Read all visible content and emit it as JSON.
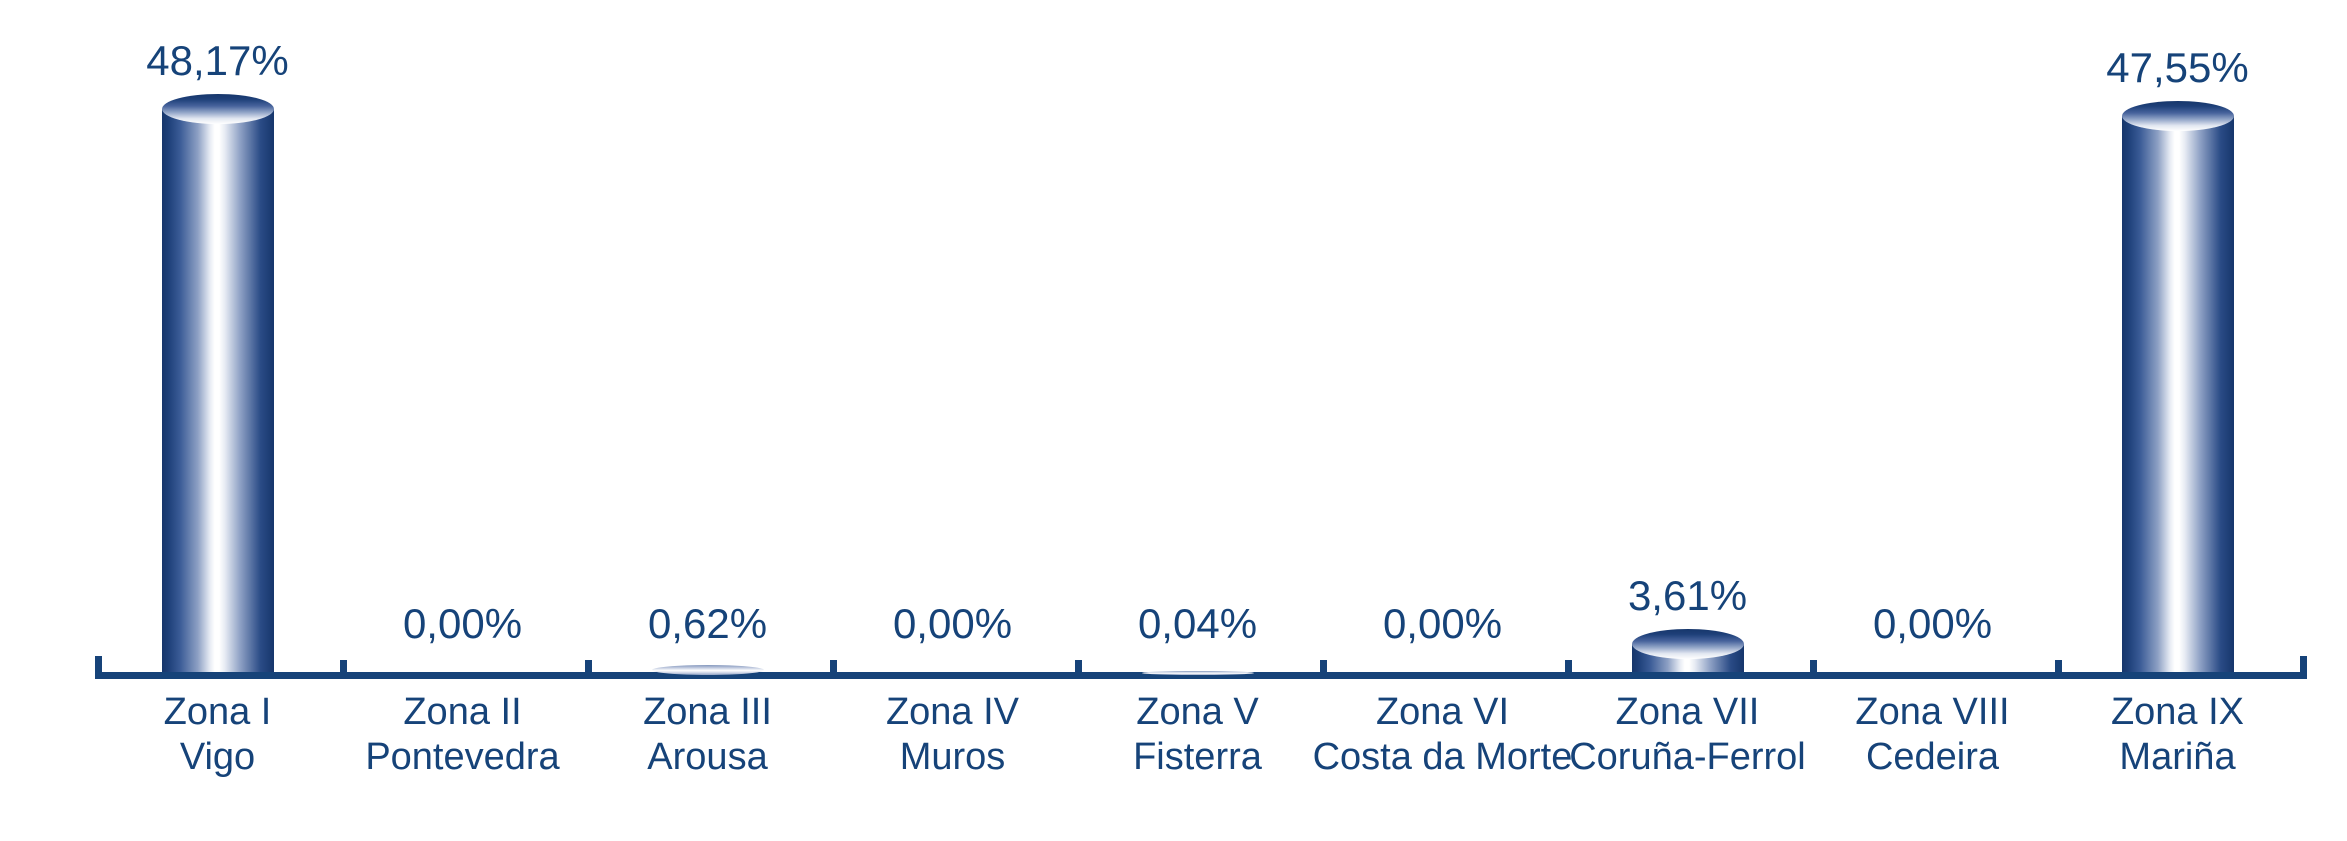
{
  "chart_data": {
    "type": "bar",
    "subtype": "3d-cylinder",
    "title": "",
    "xlabel": "",
    "ylabel": "",
    "ylim": [
      0,
      50
    ],
    "grid": false,
    "legend": "none",
    "value_format": "percent-comma-decimal",
    "categories": [
      "Zona I\nVigo",
      "Zona II\nPontevedra",
      "Zona III\nArousa",
      "Zona IV\nMuros",
      "Zona V\nFisterra",
      "Zona VI\nCosta da Morte",
      "Zona VII\nCoruña-Ferrol",
      "Zona VIII\nCedeira",
      "Zona IX\nMariña"
    ],
    "bars": [
      {
        "zone": "Zona I",
        "place": "Vigo",
        "value": 48.17,
        "label": "48,17%"
      },
      {
        "zone": "Zona II",
        "place": "Pontevedra",
        "value": 0.0,
        "label": "0,00%"
      },
      {
        "zone": "Zona III",
        "place": "Arousa",
        "value": 0.62,
        "label": "0,62%"
      },
      {
        "zone": "Zona IV",
        "place": "Muros",
        "value": 0.0,
        "label": "0,00%"
      },
      {
        "zone": "Zona V",
        "place": "Fisterra",
        "value": 0.04,
        "label": "0,04%"
      },
      {
        "zone": "Zona VI",
        "place": "Costa da Morte",
        "value": 0.0,
        "label": "0,00%"
      },
      {
        "zone": "Zona VII",
        "place": "Coruña-Ferrol",
        "value": 3.61,
        "label": "3,61%"
      },
      {
        "zone": "Zona VIII",
        "place": "Cedeira",
        "value": 0.0,
        "label": "0,00%"
      },
      {
        "zone": "Zona IX",
        "place": "Mariña",
        "value": 47.55,
        "label": "47,55%"
      }
    ],
    "colors": {
      "text": "#164379",
      "axis": "#164379",
      "cylinder_edge": "#16366B",
      "cylinder_highlight": "#FFFFFF",
      "body_gradient": "linear-gradient(90deg, #16366B 0%, #1E4079 6%, #3A5B96 16%, #8DA0C4 32%, #E8ECF4 43%, #FFFFFF 47%, #FFFFFF 51%, #E8ECF4 56%, #8DA0C4 70%, #2A4B86 88%, #16366B 100%)",
      "top_gradient": "linear-gradient(180deg, #16366B 0%, #1E4079 18%, #47639C 40%, #94A7C9 62%, #E2E7F1 82%, #FFFFFF 100%)",
      "lens_gradient": "linear-gradient(180deg, #8296BC 0%, #C6CFE2 30%, #FFFFFF 55%, #D5DBEA 75%, #93A4C5 100%)"
    }
  }
}
